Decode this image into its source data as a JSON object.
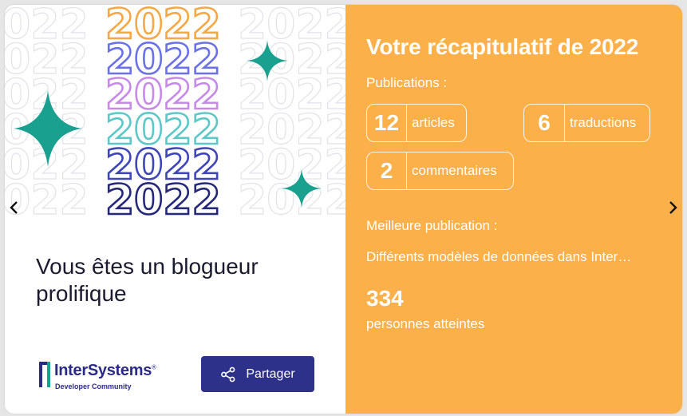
{
  "colors": {
    "panel_bg": "#fbb04a",
    "brand_navy": "#2e3189",
    "sparkle": "#1aa08e",
    "year_stack": [
      "#f4a847",
      "#6b72e8",
      "#c68ae8",
      "#5ec7c8",
      "#3f47b8",
      "#26297a"
    ]
  },
  "art": {
    "year": "2022"
  },
  "left": {
    "headline": "Vous êtes un blogueur prolifique",
    "logo_name": "InterSystems",
    "logo_mark": "®",
    "logo_sub": "Developer Community",
    "share_label": "Partager",
    "share_icon": "share-icon"
  },
  "recap": {
    "title": "Votre récapitulatif de 2022",
    "publications_label": "Publications :",
    "stats": [
      {
        "value": "12",
        "label": "articles"
      },
      {
        "value": "6",
        "label": "traductions"
      },
      {
        "value": "2",
        "label": "commentaires"
      }
    ],
    "best_label": "Meilleure publication :",
    "best_title": "Différents modèles de données dans Inter…",
    "reach_value": "334",
    "reach_label": "personnes atteintes"
  },
  "nav": {
    "prev_icon": "chevron-left-icon",
    "next_icon": "chevron-right-icon"
  }
}
